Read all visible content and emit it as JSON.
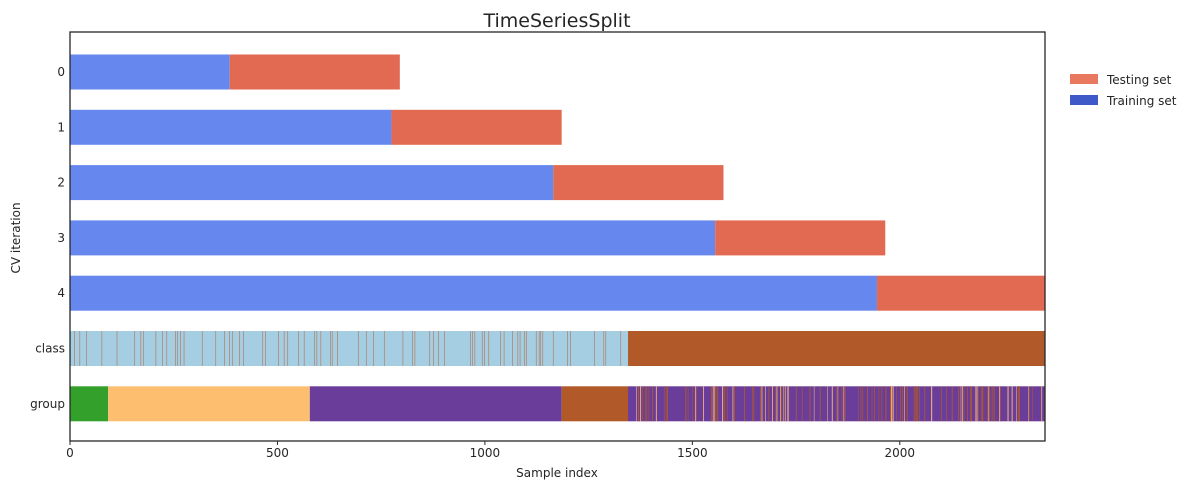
{
  "chart_data": {
    "type": "bar",
    "title": "TimeSeriesSplit",
    "xlabel": "Sample index",
    "ylabel": "CV iteration",
    "xlim": [
      0,
      2350
    ],
    "xticks": [
      0,
      500,
      1000,
      1500,
      2000
    ],
    "grid": false,
    "legend_position": "top-right, outside plot",
    "legend": [
      {
        "label": "Testing set",
        "color": "#e8785e"
      },
      {
        "label": "Training set",
        "color": "#4059c9"
      }
    ],
    "colors": {
      "training": "#6688ee",
      "testing": "#e26a52",
      "class_0": "#a6cee3",
      "class_1": "#b15928",
      "group_0": "#33a02c",
      "group_1": "#fdbf6f",
      "group_2": "#6a3d9a",
      "group_3": "#b15928"
    },
    "rows": [
      {
        "label": "0",
        "train": [
          0,
          385
        ],
        "test": [
          385,
          795
        ]
      },
      {
        "label": "1",
        "train": [
          0,
          775
        ],
        "test": [
          775,
          1185
        ]
      },
      {
        "label": "2",
        "train": [
          0,
          1165
        ],
        "test": [
          1165,
          1575
        ]
      },
      {
        "label": "3",
        "train": [
          0,
          1555
        ],
        "test": [
          1555,
          1965
        ]
      },
      {
        "label": "4",
        "train": [
          0,
          1945
        ],
        "test": [
          1945,
          2350
        ]
      }
    ],
    "class_row": {
      "label": "class",
      "segments": [
        {
          "start": 0,
          "end": 1345,
          "class": 0,
          "note": "mostly class 0 with scattered class 1 samples"
        },
        {
          "start": 1345,
          "end": 2350,
          "class": 1
        }
      ]
    },
    "group_row": {
      "label": "group",
      "segments": [
        {
          "start": 0,
          "end": 92,
          "group": 0
        },
        {
          "start": 92,
          "end": 578,
          "group": 1
        },
        {
          "start": 578,
          "end": 1185,
          "group": 2
        },
        {
          "start": 1185,
          "end": 1345,
          "group": 3
        },
        {
          "start": 1345,
          "end": 2350,
          "group": "mixed"
        }
      ]
    }
  }
}
